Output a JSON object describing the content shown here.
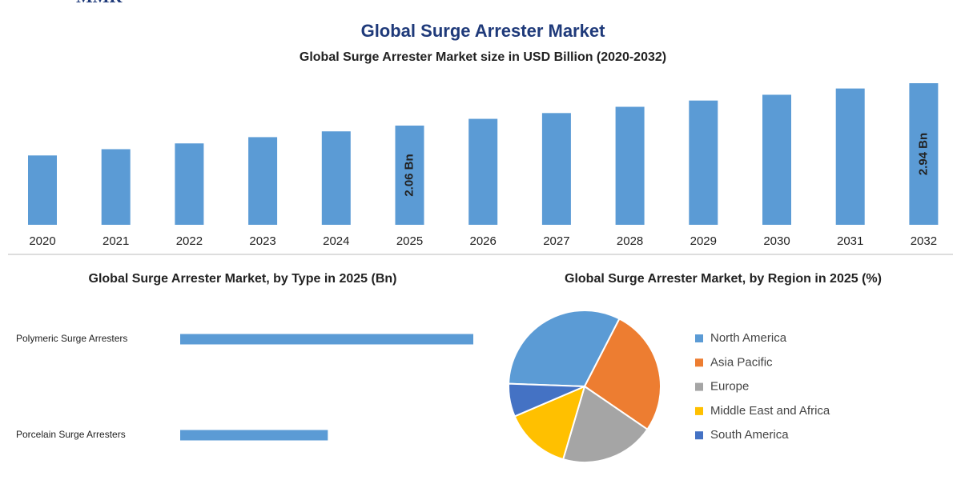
{
  "logo": "MMR",
  "title": "Global Surge Arrester Market",
  "chart_data": [
    {
      "type": "bar",
      "title": "Global Surge Arrester Market size in USD Billion (2020-2032)",
      "categories": [
        "2020",
        "2021",
        "2022",
        "2023",
        "2024",
        "2025",
        "2026",
        "2027",
        "2028",
        "2029",
        "2030",
        "2031",
        "2032"
      ],
      "values": [
        1.44,
        1.57,
        1.69,
        1.82,
        1.94,
        2.06,
        2.2,
        2.32,
        2.45,
        2.58,
        2.7,
        2.83,
        2.94
      ],
      "value_labels": [
        null,
        null,
        null,
        null,
        null,
        "2.06 Bn",
        null,
        null,
        null,
        null,
        null,
        null,
        "2.94 Bn"
      ],
      "color": "#5b9bd5"
    },
    {
      "type": "hbar",
      "title": "Global Surge Arrester Market, by Type in 2025 (Bn)",
      "categories": [
        "Polymeric Surge Arresters",
        "Porcelain Surge Arresters"
      ],
      "values": [
        1.37,
        0.69
      ],
      "color": "#5b9bd5"
    },
    {
      "type": "pie",
      "title": "Global Surge Arrester Market, by Region in 2025 (%)",
      "categories": [
        "North America",
        "Asia Pacific",
        "Europe",
        "Middle East and Africa",
        "South America"
      ],
      "values": [
        32,
        27,
        20,
        14,
        7
      ],
      "colors": [
        "#5b9bd5",
        "#ed7d31",
        "#a5a5a5",
        "#ffc000",
        "#4472c4"
      ]
    }
  ]
}
